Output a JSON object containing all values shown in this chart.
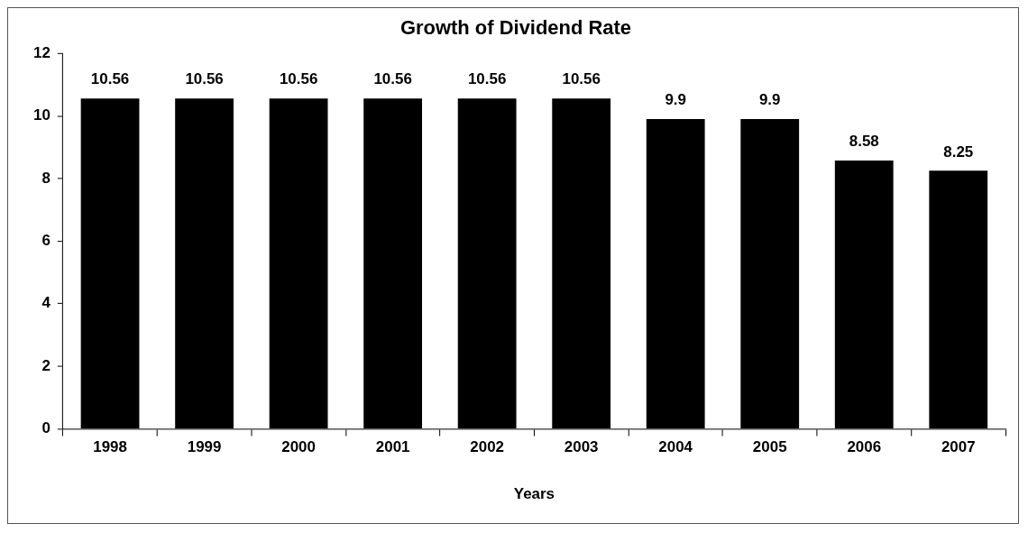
{
  "chart_data": {
    "type": "bar",
    "title": "Growth of Dividend Rate",
    "xlabel": "Years",
    "categories": [
      "1998",
      "1999",
      "2000",
      "2001",
      "2002",
      "2003",
      "2004",
      "2005",
      "2006",
      "2007"
    ],
    "values": [
      10.56,
      10.56,
      10.56,
      10.56,
      10.56,
      10.56,
      9.9,
      9.9,
      8.58,
      8.25
    ],
    "color": "#000000",
    "ylim": [
      0,
      12
    ],
    "yticks": [
      0,
      2,
      4,
      6,
      8,
      10,
      12
    ],
    "grid": false,
    "legend": false,
    "data_labels": true
  }
}
